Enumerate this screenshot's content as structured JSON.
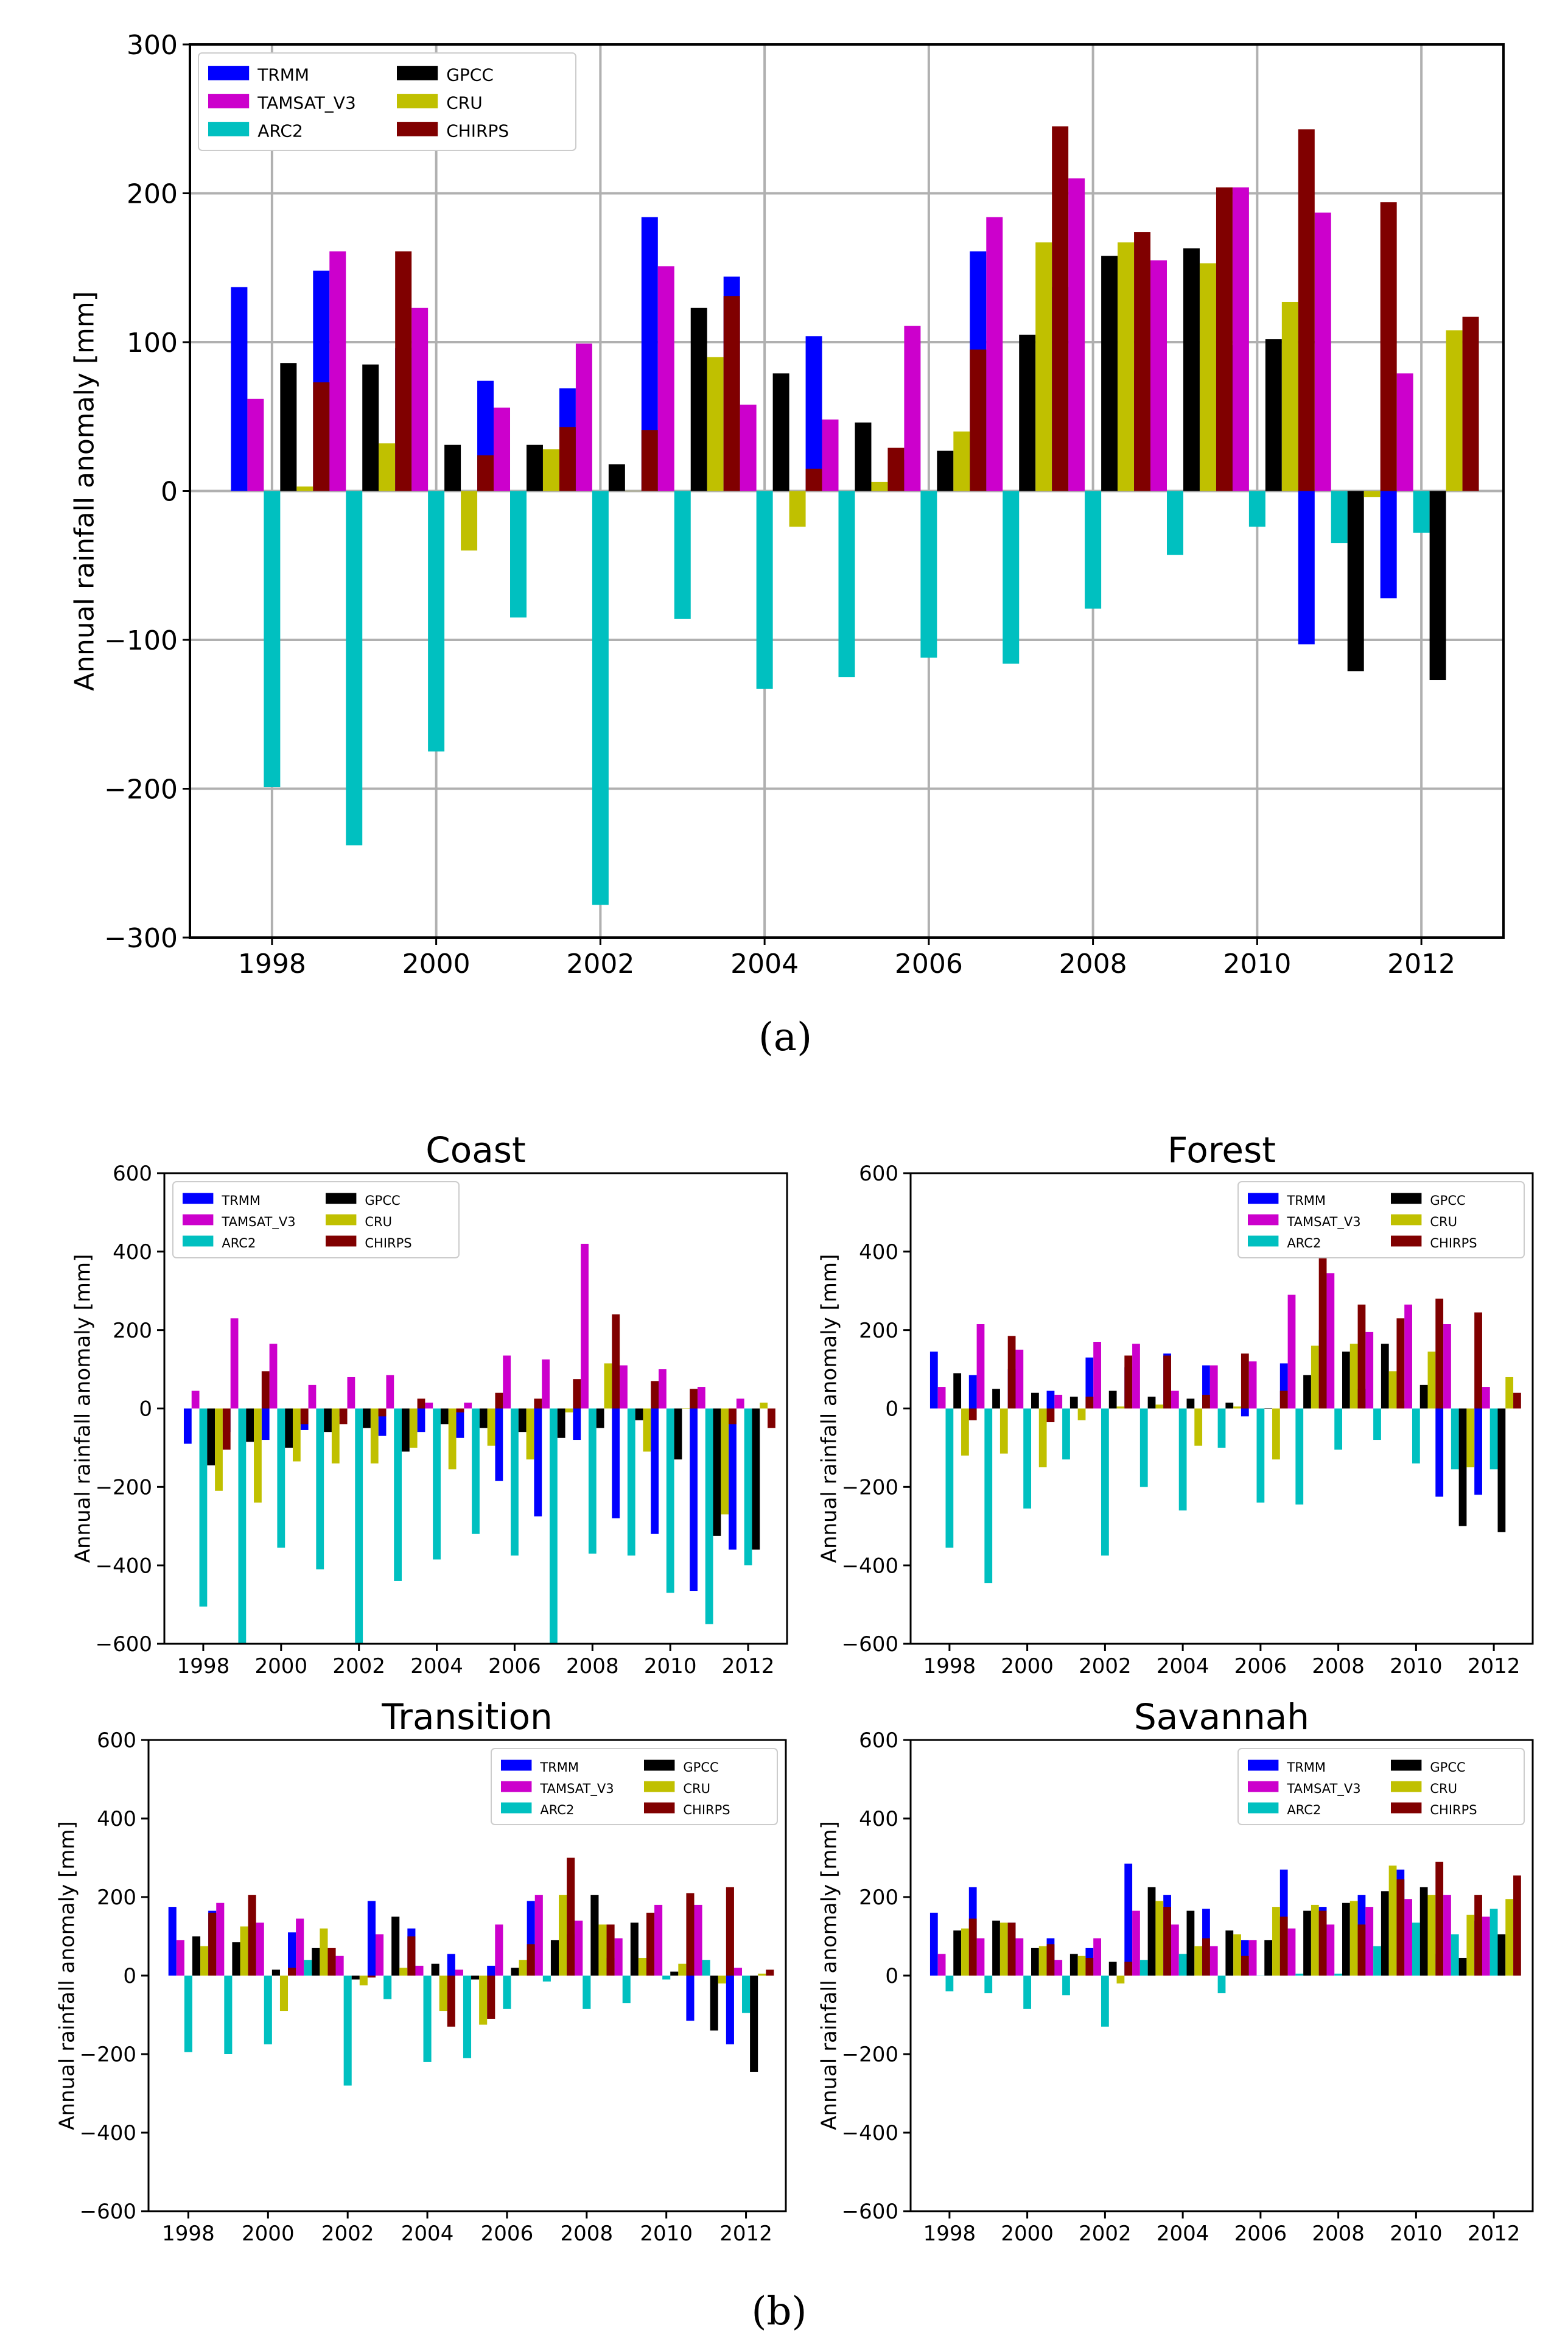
{
  "series_names": [
    "TRMM",
    "TAMSAT_V3",
    "ARC2",
    "GPCC",
    "CRU",
    "CHIRPS"
  ],
  "colors": {
    "TRMM": "#0000ff",
    "TAMSAT_V3": "#cc00cc",
    "ARC2": "#00c0c0",
    "GPCC": "#000000",
    "CRU": "#c0c000",
    "CHIRPS": "#800000",
    "grid": "#b0b0b0"
  },
  "panel_labels": {
    "a": "(a)",
    "b": "(b)"
  },
  "chart_data": [
    {
      "id": "overall",
      "type": "bar",
      "title": "",
      "xlabel": "",
      "ylabel": "Annual rainfall anomaly [mm]",
      "grid": true,
      "legend_position": "top-left",
      "ylim": [
        -300,
        300
      ],
      "yticks": [
        -300,
        -200,
        -100,
        0,
        100,
        200,
        300
      ],
      "categories": [
        "1998",
        "1999",
        "2000",
        "2001",
        "2002",
        "2003",
        "2004",
        "2005",
        "2006",
        "2007",
        "2008",
        "2009",
        "2010",
        "2011",
        "2012"
      ],
      "xticks": [
        "1998",
        "2000",
        "2002",
        "2004",
        "2006",
        "2008",
        "2010",
        "2012"
      ],
      "series": [
        {
          "name": "TRMM",
          "values": [
            137,
            148,
            96,
            74,
            69,
            184,
            144,
            104,
            21,
            161,
            137,
            81,
            98,
            -103,
            -72
          ]
        },
        {
          "name": "TAMSAT_V3",
          "values": [
            62,
            161,
            123,
            56,
            99,
            151,
            58,
            48,
            111,
            184,
            210,
            155,
            204,
            187,
            79
          ]
        },
        {
          "name": "ARC2",
          "values": [
            -199,
            -238,
            -175,
            -85,
            -278,
            -86,
            -133,
            -125,
            -112,
            -116,
            -79,
            -43,
            -24,
            -35,
            -28
          ]
        },
        {
          "name": "GPCC",
          "values": [
            86,
            85,
            31,
            31,
            18,
            123,
            79,
            46,
            27,
            105,
            158,
            163,
            102,
            -121,
            -127
          ]
        },
        {
          "name": "CRU",
          "values": [
            3,
            32,
            -40,
            28,
            0,
            90,
            -24,
            6,
            40,
            167,
            167,
            153,
            127,
            -4,
            108
          ]
        },
        {
          "name": "CHIRPS",
          "values": [
            73,
            161,
            24,
            43,
            41,
            131,
            15,
            29,
            95,
            245,
            174,
            204,
            243,
            194,
            117
          ]
        }
      ]
    },
    {
      "id": "coast",
      "type": "bar",
      "title": "Coast",
      "xlabel": "",
      "ylabel": "Annual rainfall anomaly [mm]",
      "grid": false,
      "legend_position": "top-left",
      "ylim": [
        -600,
        600
      ],
      "yticks": [
        -600,
        -400,
        -200,
        0,
        200,
        400,
        600
      ],
      "categories": [
        "1998",
        "1999",
        "2000",
        "2001",
        "2002",
        "2003",
        "2004",
        "2005",
        "2006",
        "2007",
        "2008",
        "2009",
        "2010",
        "2011",
        "2012"
      ],
      "xticks": [
        "1998",
        "2000",
        "2002",
        "2004",
        "2006",
        "2008",
        "2010",
        "2012"
      ],
      "series": [
        {
          "name": "TRMM",
          "values": [
            -90,
            -60,
            -80,
            -55,
            -20,
            -70,
            -60,
            -75,
            -185,
            -275,
            -80,
            -280,
            -320,
            -465,
            -360
          ]
        },
        {
          "name": "TAMSAT_V3",
          "values": [
            45,
            230,
            165,
            60,
            80,
            85,
            15,
            15,
            135,
            125,
            420,
            110,
            100,
            55,
            25
          ]
        },
        {
          "name": "ARC2",
          "values": [
            -505,
            -600,
            -355,
            -410,
            -600,
            -440,
            -385,
            -320,
            -375,
            -600,
            -370,
            -375,
            -470,
            -550,
            -400
          ]
        },
        {
          "name": "GPCC",
          "values": [
            -145,
            -85,
            -100,
            -60,
            -50,
            -110,
            -40,
            -50,
            -60,
            -75,
            -50,
            -30,
            -130,
            -325,
            -360
          ]
        },
        {
          "name": "CRU",
          "values": [
            -210,
            -240,
            -135,
            -140,
            -140,
            -100,
            -155,
            -95,
            -130,
            -10,
            115,
            -110,
            0,
            -270,
            15
          ]
        },
        {
          "name": "CHIRPS",
          "values": [
            -105,
            95,
            -40,
            -40,
            -20,
            25,
            -10,
            40,
            25,
            75,
            240,
            70,
            50,
            -40,
            -50
          ]
        }
      ]
    },
    {
      "id": "forest",
      "type": "bar",
      "title": "Forest",
      "xlabel": "",
      "ylabel": "Annual rainfall anomaly [mm]",
      "grid": false,
      "legend_position": "top-right",
      "ylim": [
        -600,
        600
      ],
      "yticks": [
        -600,
        -400,
        -200,
        0,
        200,
        400,
        600
      ],
      "categories": [
        "1998",
        "1999",
        "2000",
        "2001",
        "2002",
        "2003",
        "2004",
        "2005",
        "2006",
        "2007",
        "2008",
        "2009",
        "2010",
        "2011",
        "2012"
      ],
      "xticks": [
        "1998",
        "2000",
        "2002",
        "2004",
        "2006",
        "2008",
        "2010",
        "2012"
      ],
      "series": [
        {
          "name": "TRMM",
          "values": [
            145,
            85,
            100,
            45,
            130,
            105,
            140,
            110,
            -20,
            115,
            200,
            50,
            20,
            -225,
            -220
          ]
        },
        {
          "name": "TAMSAT_V3",
          "values": [
            55,
            215,
            150,
            35,
            170,
            165,
            45,
            110,
            120,
            290,
            345,
            195,
            265,
            215,
            55
          ]
        },
        {
          "name": "ARC2",
          "values": [
            -355,
            -445,
            -255,
            -130,
            -375,
            -200,
            -260,
            -100,
            -240,
            -245,
            -105,
            -80,
            -140,
            -155,
            -155
          ]
        },
        {
          "name": "GPCC",
          "values": [
            90,
            50,
            40,
            30,
            45,
            30,
            25,
            15,
            0,
            85,
            145,
            165,
            60,
            -300,
            -315
          ]
        },
        {
          "name": "CRU",
          "values": [
            -120,
            -115,
            -150,
            -30,
            5,
            10,
            -95,
            5,
            -130,
            160,
            165,
            95,
            145,
            -150,
            80
          ]
        },
        {
          "name": "CHIRPS",
          "values": [
            -30,
            185,
            -35,
            30,
            135,
            135,
            35,
            140,
            45,
            395,
            265,
            230,
            280,
            245,
            40
          ]
        }
      ]
    },
    {
      "id": "transition",
      "type": "bar",
      "title": "Transition",
      "xlabel": "",
      "ylabel": "Annual rainfall anomaly [mm]",
      "grid": false,
      "legend_position": "top-right",
      "ylim": [
        -600,
        600
      ],
      "yticks": [
        -600,
        -400,
        -200,
        0,
        200,
        400,
        600
      ],
      "categories": [
        "1998",
        "1999",
        "2000",
        "2001",
        "2002",
        "2003",
        "2004",
        "2005",
        "2006",
        "2007",
        "2008",
        "2009",
        "2010",
        "2011",
        "2012"
      ],
      "xticks": [
        "1998",
        "2000",
        "2002",
        "2004",
        "2006",
        "2008",
        "2010",
        "2012"
      ],
      "series": [
        {
          "name": "TRMM",
          "values": [
            175,
            165,
            90,
            110,
            40,
            190,
            120,
            55,
            25,
            190,
            105,
            45,
            50,
            -115,
            -175
          ]
        },
        {
          "name": "TAMSAT_V3",
          "values": [
            90,
            185,
            135,
            145,
            50,
            105,
            25,
            15,
            130,
            205,
            140,
            95,
            180,
            180,
            20
          ]
        },
        {
          "name": "ARC2",
          "values": [
            -195,
            -200,
            -175,
            40,
            -280,
            -60,
            -220,
            -210,
            -85,
            -15,
            -85,
            -70,
            -10,
            40,
            -95
          ]
        },
        {
          "name": "GPCC",
          "values": [
            100,
            85,
            15,
            70,
            -10,
            150,
            30,
            -10,
            20,
            90,
            205,
            135,
            10,
            -140,
            -245
          ]
        },
        {
          "name": "CRU",
          "values": [
            75,
            125,
            -90,
            120,
            -25,
            20,
            -90,
            -125,
            40,
            205,
            130,
            45,
            30,
            -20,
            5
          ]
        },
        {
          "name": "CHIRPS",
          "values": [
            160,
            205,
            20,
            70,
            -5,
            100,
            -130,
            -110,
            80,
            300,
            130,
            160,
            210,
            225,
            15
          ]
        }
      ]
    },
    {
      "id": "savannah",
      "type": "bar",
      "title": "Savannah",
      "xlabel": "",
      "ylabel": "Annual rainfall anomaly [mm]",
      "grid": false,
      "legend_position": "top-right",
      "ylim": [
        -600,
        600
      ],
      "yticks": [
        -600,
        -400,
        -200,
        0,
        200,
        400,
        600
      ],
      "categories": [
        "1998",
        "1999",
        "2000",
        "2001",
        "2002",
        "2003",
        "2004",
        "2005",
        "2006",
        "2007",
        "2008",
        "2009",
        "2010",
        "2011",
        "2012"
      ],
      "xticks": [
        "1998",
        "2000",
        "2002",
        "2004",
        "2006",
        "2008",
        "2010",
        "2012"
      ],
      "series": [
        {
          "name": "TRMM",
          "values": [
            160,
            225,
            135,
            95,
            70,
            285,
            205,
            170,
            90,
            270,
            175,
            205,
            270,
            55,
            140
          ]
        },
        {
          "name": "TAMSAT_V3",
          "values": [
            55,
            95,
            95,
            40,
            95,
            165,
            130,
            75,
            90,
            120,
            130,
            175,
            195,
            205,
            150
          ]
        },
        {
          "name": "ARC2",
          "values": [
            -40,
            -45,
            -85,
            -50,
            -130,
            40,
            55,
            -45,
            0,
            5,
            5,
            75,
            135,
            105,
            170
          ]
        },
        {
          "name": "GPCC",
          "values": [
            115,
            140,
            70,
            55,
            35,
            225,
            165,
            115,
            90,
            165,
            185,
            215,
            225,
            45,
            105
          ]
        },
        {
          "name": "CRU",
          "values": [
            120,
            135,
            75,
            50,
            -20,
            190,
            75,
            105,
            175,
            180,
            190,
            280,
            205,
            155,
            195
          ]
        },
        {
          "name": "CHIRPS",
          "values": [
            145,
            135,
            80,
            45,
            35,
            175,
            95,
            50,
            150,
            165,
            130,
            245,
            290,
            205,
            255
          ]
        }
      ]
    }
  ]
}
